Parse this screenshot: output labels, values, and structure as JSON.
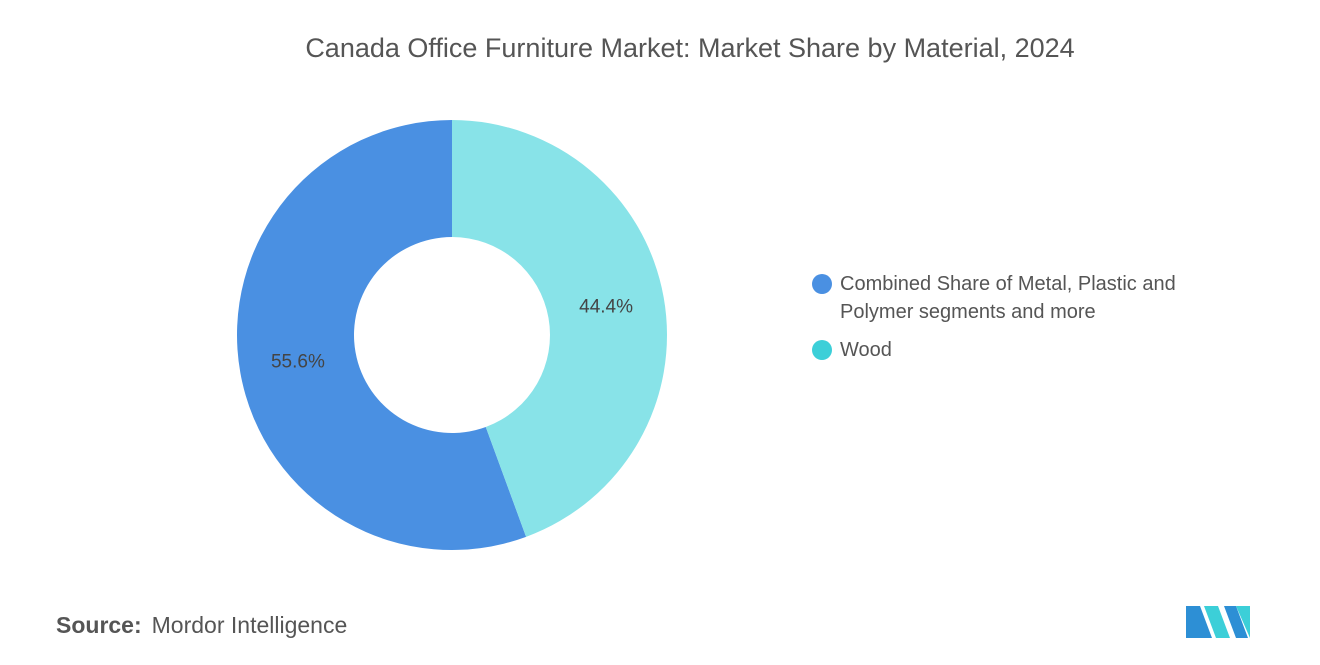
{
  "chart_data": {
    "type": "donut",
    "title": "Canada Office Furniture Market: Market Share by Material, 2024",
    "categories": [
      "Combined Share of Metal, Plastic and Polymer segments and more",
      "Wood"
    ],
    "values": [
      55.6,
      44.4
    ],
    "value_labels": [
      "55.6%",
      "44.4%"
    ],
    "colors": [
      "#4a90e2",
      "#88e3e8"
    ],
    "legend_colors": [
      "#4a90e2",
      "#3ccfd8"
    ],
    "legend": "right"
  },
  "source": {
    "label": "Source:",
    "text": "Mordor Intelligence"
  }
}
